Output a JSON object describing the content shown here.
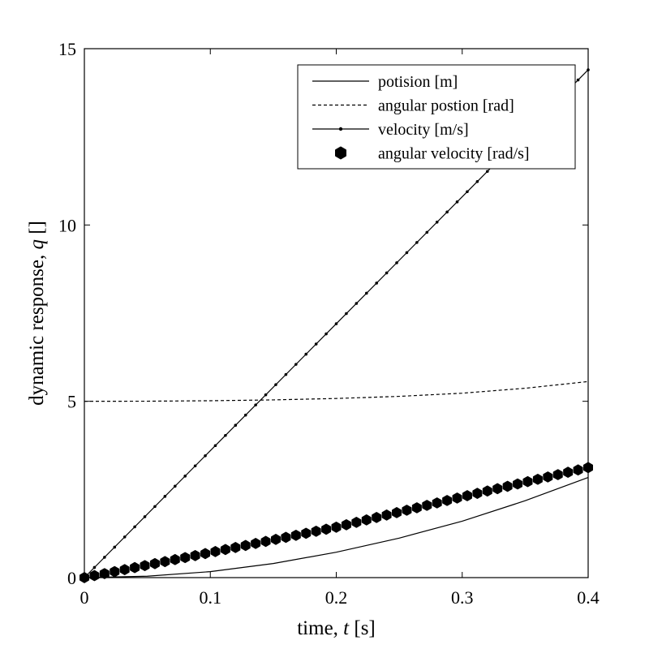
{
  "chart_data": {
    "type": "line",
    "title": "",
    "xlabel": {
      "prefix": "time,  ",
      "var": "t",
      "suffix": " [s]"
    },
    "ylabel": {
      "prefix": "dynamic response,  ",
      "var": "q",
      "suffix": " []"
    },
    "xlim": [
      0,
      0.4
    ],
    "ylim": [
      0,
      15
    ],
    "xticks": [
      0,
      0.1,
      0.2,
      0.3,
      0.4
    ],
    "xtick_labels": [
      "0",
      "0.1",
      "0.2",
      "0.3",
      "0.4"
    ],
    "yticks": [
      0,
      5,
      10,
      15
    ],
    "ytick_labels": [
      "0",
      "5",
      "10",
      "15"
    ],
    "grid": false,
    "legend_position": "top-right",
    "line_color": "#000000",
    "series": [
      {
        "name": "potision [m]",
        "style": "solid",
        "x": [
          0,
          0.05,
          0.1,
          0.15,
          0.2,
          0.25,
          0.3,
          0.35,
          0.4
        ],
        "y": [
          0,
          0.04,
          0.17,
          0.4,
          0.72,
          1.12,
          1.6,
          2.18,
          2.84
        ]
      },
      {
        "name": "angular postion [rad]",
        "style": "dashed",
        "x": [
          0,
          0.05,
          0.1,
          0.15,
          0.2,
          0.25,
          0.3,
          0.35,
          0.4
        ],
        "y": [
          5.0,
          5.003,
          5.016,
          5.04,
          5.08,
          5.14,
          5.23,
          5.37,
          5.56
        ]
      },
      {
        "name": "velocity [m/s]",
        "style": "solid-dot",
        "x": [
          0,
          0.1,
          0.2,
          0.3,
          0.4
        ],
        "y": [
          0,
          3.6,
          7.2,
          10.8,
          14.4
        ]
      },
      {
        "name": "angular velocity [rad/s]",
        "style": "star",
        "x": [
          0,
          0.1,
          0.2,
          0.3,
          0.4
        ],
        "y": [
          0,
          0.71,
          1.43,
          2.29,
          3.12
        ]
      }
    ]
  }
}
